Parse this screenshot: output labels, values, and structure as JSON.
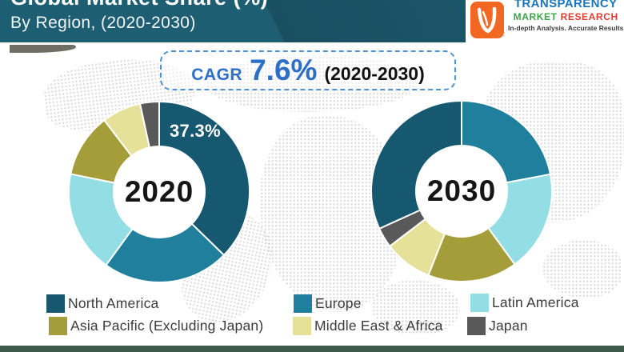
{
  "header": {
    "title_line1": "Global Market Share (%)",
    "title_line2": "By Region, (2020-2030)"
  },
  "brand": {
    "name_top": "TRANSPARENCY",
    "name_word1": "MARKET",
    "name_word2": "RESEARCH",
    "tagline": "In-depth Analysis. Accurate Results",
    "trademark": "™",
    "icon": "checkmark-leaf-icon"
  },
  "cagr": {
    "prefix": "CAGR",
    "value": "7.6%",
    "period": "(2020-2030)"
  },
  "colors": {
    "header_teal": "#1e5e72",
    "accent_blue": "#2d6fc7",
    "dashed_border_blue": "#4f93d2",
    "footer_green": "#3e5a48",
    "ribbon_gray": "#6e6e65",
    "logo_orange": "#f26822",
    "brand_blue": "#1b75bb",
    "brand_green": "#3aa648",
    "brand_red": "#e03c31"
  },
  "legend": {
    "items": [
      {
        "label": "North America",
        "color": "#16586f"
      },
      {
        "label": "Europe",
        "color": "#1f7f9c"
      },
      {
        "label": "Latin America",
        "color": "#93dde5"
      },
      {
        "label": "Asia Pacific (Excluding Japan)",
        "color": "#a49d3a"
      },
      {
        "label": "Middle East & Africa",
        "color": "#e6e199"
      },
      {
        "label": "Japan",
        "color": "#595959"
      }
    ]
  },
  "chart_data": [
    {
      "type": "pie",
      "subtype": "donut",
      "title": "2020",
      "center_label": "2020",
      "unit": "%",
      "start_angle_deg": 0,
      "direction": "clockwise",
      "segments": [
        {
          "label": "North America",
          "value": 37.3,
          "data_label": "37.3%"
        },
        {
          "label": "Europe",
          "value": 22.7
        },
        {
          "label": "Latin America",
          "value": 18.2
        },
        {
          "label": "Asia Pacific (Excluding Japan)",
          "value": 11.4
        },
        {
          "label": "Middle East & Africa",
          "value": 7.0
        },
        {
          "label": "Japan",
          "value": 3.4
        }
      ]
    },
    {
      "type": "pie",
      "subtype": "donut",
      "title": "2030",
      "center_label": "2030",
      "unit": "%",
      "start_angle_deg": 0,
      "direction": "clockwise",
      "segments": [
        {
          "label": "Europe",
          "value": 22.0
        },
        {
          "label": "Latin America",
          "value": 18.0
        },
        {
          "label": "Asia Pacific (Excluding Japan)",
          "value": 16.0
        },
        {
          "label": "Middle East & Africa",
          "value": 8.6
        },
        {
          "label": "Japan",
          "value": 3.6
        },
        {
          "label": "North America",
          "value": 31.8
        }
      ]
    }
  ]
}
